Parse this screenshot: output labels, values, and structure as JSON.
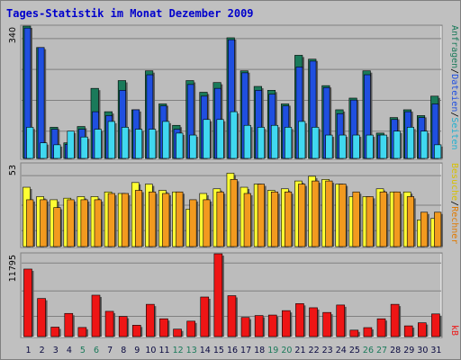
{
  "title": "Tages-Statistik im Monat Dezember 2009",
  "colors": {
    "anfragen": "#1a7a5a",
    "dateien": "#1f4fe0",
    "seiten": "#40d8f0",
    "besuche": "#ffff33",
    "rechner": "#f29a1f",
    "kb": "#ee1515",
    "weekend_day": "#1a7a5a",
    "weekday": "#0a0a40",
    "panel": "#bcbcbc",
    "grid": "#808080"
  },
  "legend": {
    "top": {
      "anfragen": "Anfragen",
      "sep1": "/",
      "dateien": "Dateien",
      "sep2": "/",
      "seiten": "Seiten"
    },
    "middle": {
      "besuche": "Besuche",
      "sep": "/",
      "rechner": "Rechner"
    },
    "bottom": {
      "kb": "kB"
    }
  },
  "chart_data": [
    {
      "type": "bar",
      "title": "",
      "ymax_label": "340",
      "ylim": [
        0,
        340
      ],
      "categories": [
        "1",
        "2",
        "3",
        "4",
        "5",
        "6",
        "7",
        "8",
        "9",
        "10",
        "11",
        "12",
        "13",
        "14",
        "15",
        "16",
        "17",
        "18",
        "19",
        "20",
        "21",
        "22",
        "23",
        "24",
        "25",
        "26",
        "27",
        "28",
        "29",
        "30",
        "31"
      ],
      "series": [
        {
          "name": "Anfragen",
          "values": [
            340,
            285,
            80,
            40,
            82,
            180,
            120,
            200,
            125,
            225,
            140,
            85,
            200,
            170,
            195,
            310,
            225,
            185,
            175,
            140,
            265,
            255,
            187,
            125,
            155,
            225,
            65,
            105,
            125,
            110,
            160
          ]
        },
        {
          "name": "Dateien",
          "values": [
            335,
            285,
            75,
            36,
            75,
            120,
            110,
            175,
            125,
            215,
            135,
            75,
            190,
            160,
            180,
            305,
            220,
            175,
            165,
            135,
            235,
            250,
            182,
            115,
            150,
            215,
            60,
            100,
            120,
            105,
            140
          ]
        },
        {
          "name": "Seiten",
          "values": [
            80,
            40,
            35,
            70,
            55,
            75,
            95,
            80,
            75,
            75,
            95,
            65,
            60,
            100,
            100,
            120,
            85,
            80,
            85,
            80,
            95,
            80,
            60,
            60,
            60,
            60,
            60,
            70,
            80,
            70,
            35
          ]
        }
      ]
    },
    {
      "type": "bar",
      "title": "",
      "ymax_label": "53",
      "ylim": [
        0,
        53
      ],
      "categories": [
        "1",
        "2",
        "3",
        "4",
        "5",
        "6",
        "7",
        "8",
        "9",
        "10",
        "11",
        "12",
        "13",
        "14",
        "15",
        "16",
        "17",
        "18",
        "19",
        "20",
        "21",
        "22",
        "23",
        "24",
        "25",
        "26",
        "27",
        "28",
        "29",
        "30",
        "31"
      ],
      "series": [
        {
          "name": "Besuche",
          "values": [
            38,
            32,
            30,
            31,
            32,
            32,
            35,
            34,
            41,
            40,
            36,
            35,
            24,
            34,
            37,
            47,
            38,
            40,
            36,
            37,
            42,
            45,
            43,
            40,
            32,
            32,
            37,
            35,
            35,
            17,
            18
          ]
        },
        {
          "name": "Rechner",
          "values": [
            30,
            30,
            25,
            30,
            30,
            30,
            34,
            34,
            36,
            35,
            34,
            35,
            30,
            30,
            35,
            43,
            34,
            40,
            35,
            35,
            40,
            42,
            42,
            40,
            35,
            32,
            35,
            35,
            32,
            22,
            22
          ]
        }
      ]
    },
    {
      "type": "bar",
      "title": "",
      "ymax_label": "11795",
      "ylim": [
        0,
        11795
      ],
      "categories": [
        "1",
        "2",
        "3",
        "4",
        "5",
        "6",
        "7",
        "8",
        "9",
        "10",
        "11",
        "12",
        "13",
        "14",
        "15",
        "16",
        "17",
        "18",
        "19",
        "20",
        "21",
        "22",
        "23",
        "24",
        "25",
        "26",
        "27",
        "28",
        "29",
        "30",
        "31"
      ],
      "series": [
        {
          "name": "kB",
          "values": [
            9620,
            5430,
            1350,
            3300,
            1300,
            5900,
            3600,
            2870,
            1620,
            4600,
            2540,
            1060,
            2200,
            5640,
            11795,
            5830,
            2730,
            3000,
            3070,
            3700,
            4700,
            4110,
            3440,
            4500,
            920,
            1280,
            2540,
            4600,
            1530,
            1970,
            3230
          ]
        }
      ]
    }
  ],
  "weekend_days": [
    5,
    6,
    12,
    13,
    19,
    20,
    26,
    27
  ]
}
